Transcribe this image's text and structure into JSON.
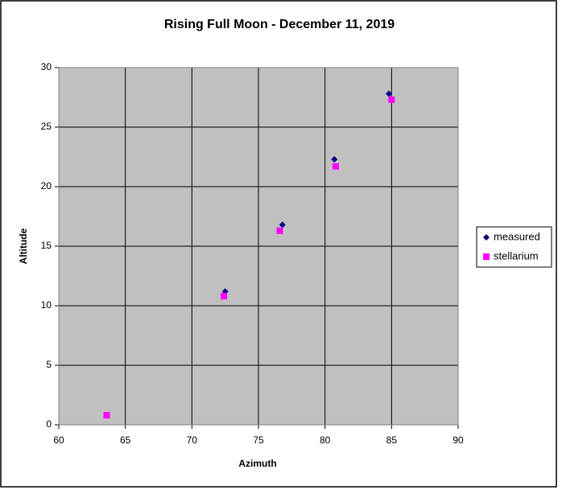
{
  "chart_data": {
    "type": "scatter",
    "title": "Rising Full Moon - December 11, 2019",
    "x_label": "Azimuth",
    "y_label": "Altitude",
    "xlim": [
      60,
      90
    ],
    "xticks": [
      60,
      65,
      70,
      75,
      80,
      85,
      90
    ],
    "ylim": [
      0,
      30
    ],
    "yticks": [
      0,
      5,
      10,
      15,
      20,
      25,
      30
    ],
    "grid": true,
    "legend": "right",
    "series": [
      {
        "name": "measured",
        "color": "#000080",
        "marker": "diamond",
        "x": [
          72.5,
          76.8,
          80.7,
          84.8
        ],
        "values": [
          11.2,
          16.8,
          22.3,
          27.8
        ]
      },
      {
        "name": "stellarium",
        "color": "#ff00ff",
        "marker": "square",
        "x": [
          63.6,
          72.4,
          76.6,
          80.8,
          85.0
        ],
        "values": [
          0.8,
          10.8,
          16.3,
          21.7,
          27.3
        ]
      }
    ]
  }
}
